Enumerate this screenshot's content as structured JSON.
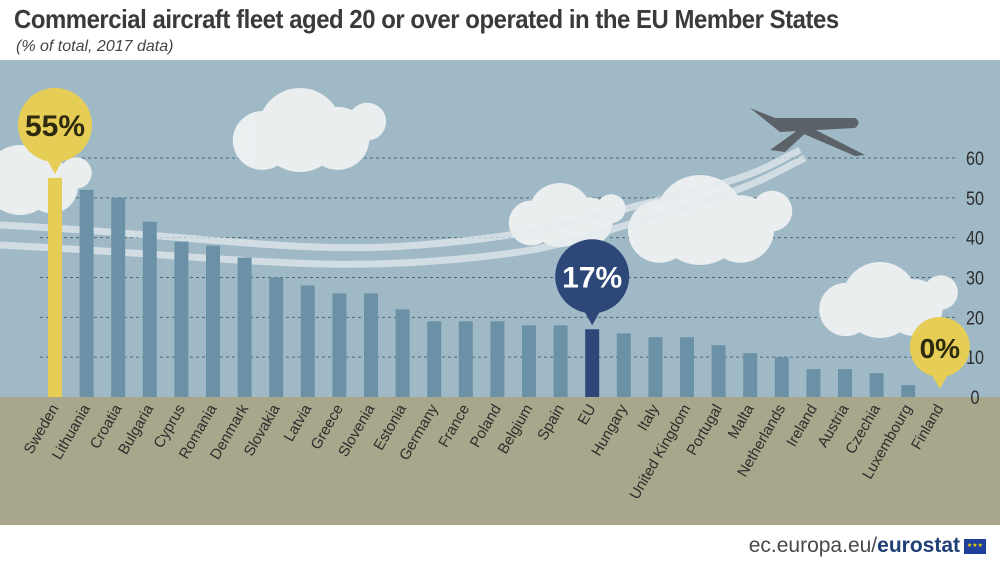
{
  "chart_data": {
    "type": "bar",
    "title": "Commercial aircraft fleet aged 20 or over operated in the EU Member States",
    "subtitle": "(% of total, 2017 data)",
    "categories": [
      "Sweden",
      "Lithuania",
      "Croatia",
      "Bulgaria",
      "Cyprus",
      "Romania",
      "Denmark",
      "Slovakia",
      "Latvia",
      "Greece",
      "Slovenia",
      "Estonia",
      "Germany",
      "France",
      "Poland",
      "Belgium",
      "Spain",
      "EU",
      "Hungary",
      "Italy",
      "United Kingdom",
      "Portugal",
      "Malta",
      "Netherlands",
      "Ireland",
      "Austria",
      "Czechia",
      "Luxembourg",
      "Finland"
    ],
    "values": [
      55,
      52,
      50,
      44,
      39,
      38,
      35,
      30,
      28,
      26,
      26,
      22,
      19,
      19,
      19,
      18,
      18,
      17,
      16,
      15,
      15,
      13,
      11,
      10,
      7,
      7,
      6,
      3,
      0
    ],
    "ylim": [
      0,
      60
    ],
    "yticks": [
      "0",
      "10",
      "20",
      "30",
      "40",
      "50",
      "60"
    ],
    "grid": true,
    "callouts": [
      {
        "category": "Sweden",
        "label": "55%",
        "color": "#e6cd55"
      },
      {
        "category": "EU",
        "label": "17%",
        "color": "#2c4778"
      },
      {
        "category": "Finland",
        "label": "0%",
        "color": "#e6cd55"
      }
    ],
    "colors": {
      "bar": "#6b91a6",
      "highlight_max": "#e6cd55",
      "eu": "#2c4778",
      "sky": "#a0b9c7",
      "ground": "#a9a78b"
    }
  },
  "footer": {
    "site": "ec.europa.eu/",
    "brand": "eurostat"
  }
}
